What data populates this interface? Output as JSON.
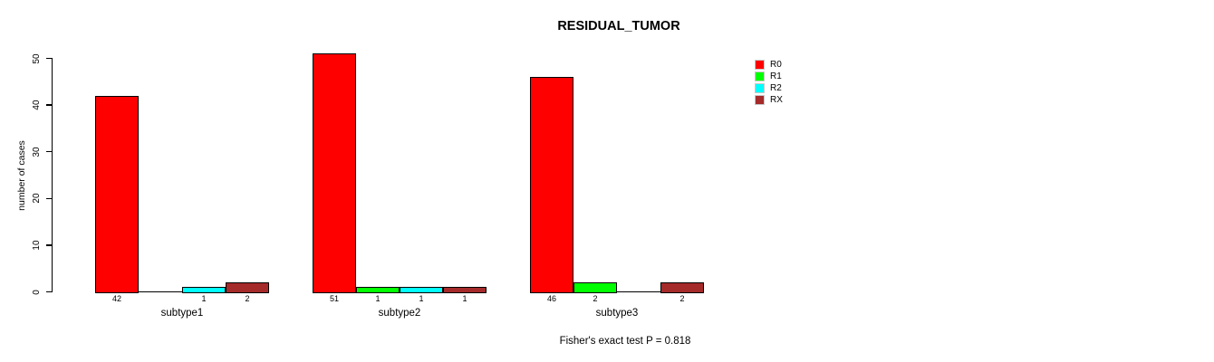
{
  "title": "RESIDUAL_TUMOR",
  "footer": "Fisher's exact test P = 0.818",
  "chart_data": {
    "type": "bar",
    "title": "RESIDUAL_TUMOR",
    "xlabel": "",
    "ylabel": "number of cases",
    "ylim": [
      0,
      50
    ],
    "y_ticks": [
      0,
      10,
      20,
      30,
      40,
      50
    ],
    "grid": false,
    "legend_position": "right",
    "categories": [
      "subtype1",
      "subtype2",
      "subtype3"
    ],
    "series": [
      {
        "name": "R0",
        "color": "#FF0000",
        "values": [
          42,
          51,
          46
        ]
      },
      {
        "name": "R1",
        "color": "#00FF00",
        "values": [
          0,
          1,
          2
        ]
      },
      {
        "name": "R2",
        "color": "#00FFFF",
        "values": [
          1,
          1,
          0
        ]
      },
      {
        "name": "RX",
        "color": "#A52A2A",
        "values": [
          2,
          1,
          2
        ]
      }
    ],
    "bar_value_labels": [
      [
        "42",
        "",
        "1",
        "2"
      ],
      [
        "51",
        "1",
        "1",
        "1"
      ],
      [
        "46",
        "2",
        "",
        "2"
      ]
    ],
    "annotation": "Fisher's exact test P = 0.818"
  }
}
